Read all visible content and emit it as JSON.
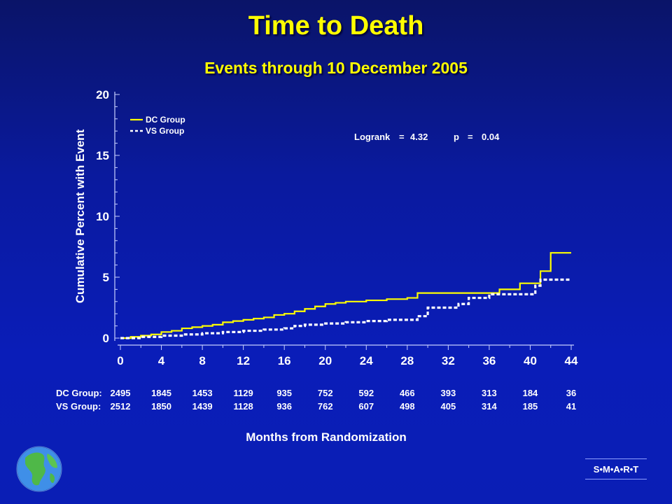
{
  "title": "Time to Death",
  "subtitle": "Events through 10 December 2005",
  "logo_text": "S•M•A•R•T",
  "chart_data": {
    "type": "line",
    "step": true,
    "title": "Time to Death",
    "subtitle": "Events through 10 December 2005",
    "xlabel": "Months from Randomization",
    "ylabel": "Cumulative Percent with Event",
    "xlim": [
      0,
      44
    ],
    "ylim": [
      0,
      20
    ],
    "x_ticks": [
      0,
      4,
      8,
      12,
      16,
      20,
      24,
      28,
      32,
      36,
      40,
      44
    ],
    "y_ticks": [
      0,
      5,
      10,
      15,
      20
    ],
    "legend": {
      "placement": "top-left",
      "entries": [
        "DC Group",
        "VS Group"
      ]
    },
    "annotation": {
      "logrank_label": "Logrank",
      "logrank_value": "4.32",
      "p_label": "p",
      "p_value": "0.04"
    },
    "colors": {
      "dc": "#ffff00",
      "vs": "#ffffff"
    },
    "series": [
      {
        "name": "DC Group",
        "style": "solid",
        "x": [
          0,
          1,
          2,
          3,
          4,
          5,
          6,
          7,
          8,
          9,
          10,
          11,
          12,
          13,
          14,
          15,
          16,
          17,
          18,
          19,
          20,
          21,
          22,
          24,
          26,
          28,
          29,
          30,
          32,
          36,
          37,
          39,
          40.5,
          41,
          41.5,
          42,
          44
        ],
        "y": [
          0,
          0.1,
          0.2,
          0.3,
          0.5,
          0.6,
          0.8,
          0.9,
          1.0,
          1.1,
          1.3,
          1.4,
          1.5,
          1.6,
          1.7,
          1.9,
          2.0,
          2.2,
          2.4,
          2.6,
          2.8,
          2.9,
          3.0,
          3.1,
          3.2,
          3.3,
          3.7,
          3.7,
          3.7,
          3.7,
          4.0,
          4.5,
          4.5,
          5.5,
          5.5,
          7.0,
          7.0
        ]
      },
      {
        "name": "VS Group",
        "style": "dashed",
        "x": [
          0,
          2,
          4,
          6,
          8,
          10,
          12,
          14,
          16,
          17,
          18,
          20,
          22,
          24,
          26,
          28,
          29,
          30,
          32,
          33,
          34,
          36,
          38,
          40,
          40.5,
          41,
          44
        ],
        "y": [
          0,
          0.1,
          0.2,
          0.3,
          0.4,
          0.5,
          0.6,
          0.7,
          0.8,
          1.0,
          1.1,
          1.2,
          1.3,
          1.4,
          1.5,
          1.5,
          1.8,
          2.5,
          2.5,
          2.8,
          3.3,
          3.6,
          3.6,
          3.6,
          4.3,
          4.8,
          4.8
        ]
      }
    ],
    "at_risk": {
      "x": [
        0,
        4,
        8,
        12,
        16,
        20,
        24,
        28,
        32,
        36,
        40,
        44
      ],
      "rows": [
        {
          "label": "DC Group:",
          "values": [
            "2495",
            "1845",
            "1453",
            "1129",
            "935",
            "752",
            "592",
            "466",
            "393",
            "313",
            "184",
            "36"
          ]
        },
        {
          "label": "VS Group:",
          "values": [
            "2512",
            "1850",
            "1439",
            "1128",
            "936",
            "762",
            "607",
            "498",
            "405",
            "314",
            "185",
            "41"
          ]
        }
      ]
    }
  }
}
